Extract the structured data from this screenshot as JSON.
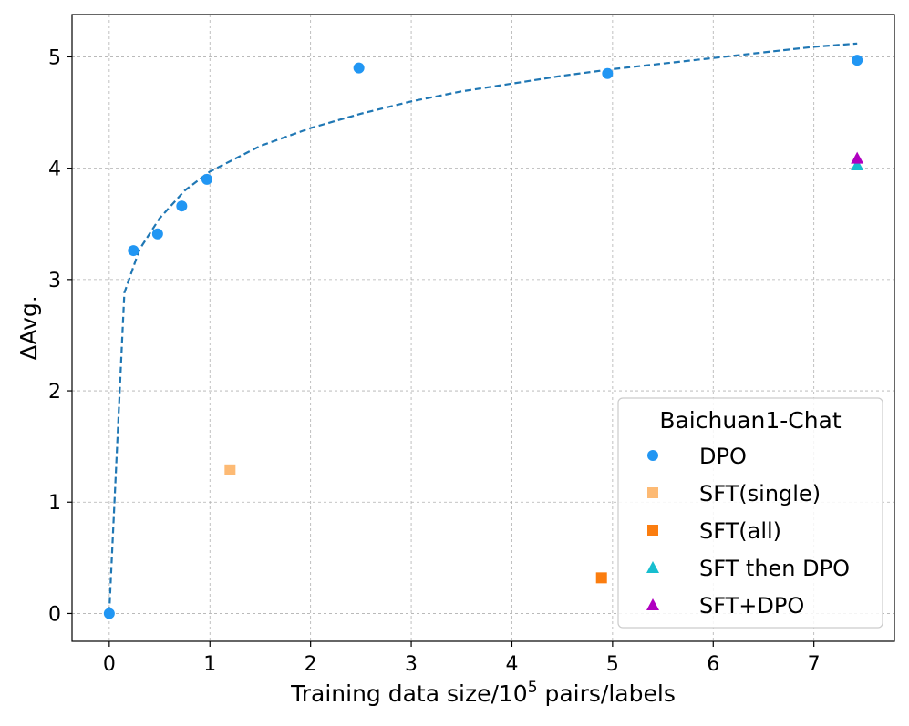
{
  "chart_data": {
    "type": "scatter",
    "xlabel": "Training data size/10",
    "xlabel_superscript": "5",
    "xlabel_suffix": " pairs/labels",
    "ylabel": "ΔAvg.",
    "xlim": [
      -0.37,
      7.8
    ],
    "ylim": [
      -0.25,
      5.38
    ],
    "x_ticks": [
      0,
      1,
      2,
      3,
      4,
      5,
      6,
      7
    ],
    "y_ticks": [
      0,
      1,
      2,
      3,
      4,
      5
    ],
    "grid": true,
    "legend": {
      "title": "Baichuan1-Chat",
      "position": "lower-right"
    },
    "series": [
      {
        "name": "DPO",
        "marker": "circle",
        "color": "#2196f3",
        "points": [
          {
            "x": 0.0,
            "y": 0.0
          },
          {
            "x": 0.24,
            "y": 3.26
          },
          {
            "x": 0.48,
            "y": 3.41
          },
          {
            "x": 0.72,
            "y": 3.66
          },
          {
            "x": 0.97,
            "y": 3.9
          },
          {
            "x": 2.48,
            "y": 4.9
          },
          {
            "x": 4.95,
            "y": 4.85
          },
          {
            "x": 7.43,
            "y": 4.97
          }
        ]
      },
      {
        "name": "SFT(single)",
        "marker": "square",
        "color": "#fdba74",
        "points": [
          {
            "x": 1.2,
            "y": 1.29
          }
        ]
      },
      {
        "name": "SFT(all)",
        "marker": "square",
        "color": "#fb7d0f",
        "points": [
          {
            "x": 4.89,
            "y": 0.32
          }
        ]
      },
      {
        "name": "SFT then DPO",
        "marker": "triangle",
        "color": "#17becf",
        "points": [
          {
            "x": 7.43,
            "y": 4.03
          }
        ]
      },
      {
        "name": "SFT+DPO",
        "marker": "triangle",
        "color": "#b000c0",
        "points": [
          {
            "x": 7.43,
            "y": 4.09
          }
        ]
      }
    ],
    "fit_curve": {
      "style": "dashed",
      "color": "#1f77b4",
      "points": [
        {
          "x": 0.0,
          "y": 0.0
        },
        {
          "x": 0.15,
          "y": 2.88
        },
        {
          "x": 0.3,
          "y": 3.27
        },
        {
          "x": 0.5,
          "y": 3.55
        },
        {
          "x": 0.75,
          "y": 3.8
        },
        {
          "x": 1.0,
          "y": 3.97
        },
        {
          "x": 1.5,
          "y": 4.2
        },
        {
          "x": 2.0,
          "y": 4.36
        },
        {
          "x": 2.5,
          "y": 4.49
        },
        {
          "x": 3.0,
          "y": 4.6
        },
        {
          "x": 3.5,
          "y": 4.69
        },
        {
          "x": 4.0,
          "y": 4.76
        },
        {
          "x": 4.5,
          "y": 4.83
        },
        {
          "x": 5.0,
          "y": 4.89
        },
        {
          "x": 5.5,
          "y": 4.94
        },
        {
          "x": 6.0,
          "y": 4.99
        },
        {
          "x": 6.5,
          "y": 5.04
        },
        {
          "x": 7.0,
          "y": 5.09
        },
        {
          "x": 7.43,
          "y": 5.12
        }
      ]
    }
  }
}
